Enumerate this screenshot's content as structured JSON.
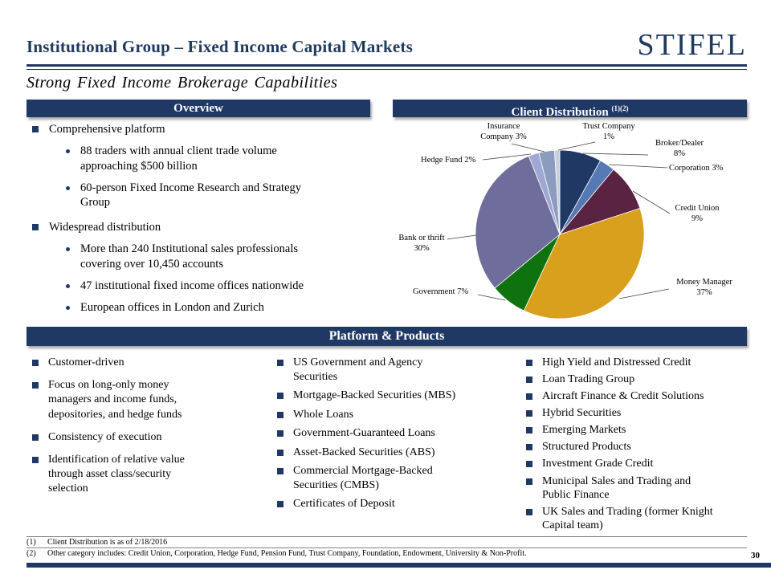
{
  "header": {
    "title": "Institutional Group – Fixed Income Capital Markets",
    "logo_text": "STIFEL",
    "subtitle": "Strong Fixed Income Brokerage Capabilities"
  },
  "overview": {
    "header": "Overview",
    "items": [
      {
        "level": 1,
        "text": "Comprehensive platform"
      },
      {
        "level": 2,
        "text": "88 traders with annual client trade volume approaching $500 billion"
      },
      {
        "level": 2,
        "text": "60-person Fixed Income Research and Strategy Group"
      },
      {
        "level": 1,
        "text": "Widespread distribution"
      },
      {
        "level": 2,
        "text": "More than 240 Institutional sales professionals covering over 10,450 accounts"
      },
      {
        "level": 2,
        "text": "47 institutional fixed income offices nationwide"
      },
      {
        "level": 2,
        "text": "European offices in London and Zurich"
      }
    ]
  },
  "chart": {
    "header": "Client Distribution",
    "header_sup": "(1)(2)"
  },
  "chart_data": {
    "type": "pie",
    "title": "Client Distribution",
    "start_angle_deg": 0,
    "direction": "clockwise",
    "slices": [
      {
        "label": "Broker/Dealer",
        "value": 8,
        "color": "#1F3864",
        "display": "Broker/Dealer 8%"
      },
      {
        "label": "Corporation",
        "value": 3,
        "color": "#5579B3",
        "display": "Corporation 3%"
      },
      {
        "label": "Credit Union",
        "value": 9,
        "color": "#5A2342",
        "display": "Credit Union 9%"
      },
      {
        "label": "Money Manager",
        "value": 37,
        "color": "#D9A01D",
        "display": "Money Manager 37%"
      },
      {
        "label": "Government",
        "value": 7,
        "color": "#0E720E",
        "display": "Government 7%"
      },
      {
        "label": "Bank or thrift",
        "value": 30,
        "color": "#6F6D9B",
        "display": "Bank or thrift 30%"
      },
      {
        "label": "Hedge Fund",
        "value": 2,
        "color": "#9FA8D4",
        "display": "Hedge Fund 2%"
      },
      {
        "label": "Insurance Company",
        "value": 3,
        "color": "#8C9CBE",
        "display": "Insurance Company 3%"
      },
      {
        "label": "Trust Company",
        "value": 1,
        "color": "#C9CEDE",
        "display": "Trust Company 1%"
      }
    ]
  },
  "platform": {
    "header": "Platform & Products",
    "col1": [
      "Customer-driven",
      "Focus on long-only money managers and income funds, depositories, and hedge funds",
      "Consistency of execution",
      "Identification of relative value through asset class/security selection"
    ],
    "col2": [
      "US Government and Agency Securities",
      "Mortgage-Backed Securities (MBS)",
      "Whole Loans",
      "Government-Guaranteed Loans",
      "Asset-Backed Securities (ABS)",
      "Commercial Mortgage-Backed Securities (CMBS)",
      "Certificates of Deposit"
    ],
    "col3": [
      "High Yield and Distressed Credit",
      "Loan Trading Group",
      "Aircraft Finance & Credit Solutions",
      "Hybrid Securities",
      "Emerging Markets",
      "Structured Products",
      "Investment Grade Credit",
      "Municipal Sales and Trading and Public Finance",
      "UK Sales and Trading (former Knight Capital team)"
    ]
  },
  "footnotes": [
    {
      "marker": "(1)",
      "text": "Client Distribution is as of 2/18/2016"
    },
    {
      "marker": "(2)",
      "text": "Other category includes:  Credit Union, Corporation, Hedge Fund, Pension Fund, Trust Company,  Foundation, Endowment, University & Non-Profit."
    }
  ],
  "page_number": "30"
}
